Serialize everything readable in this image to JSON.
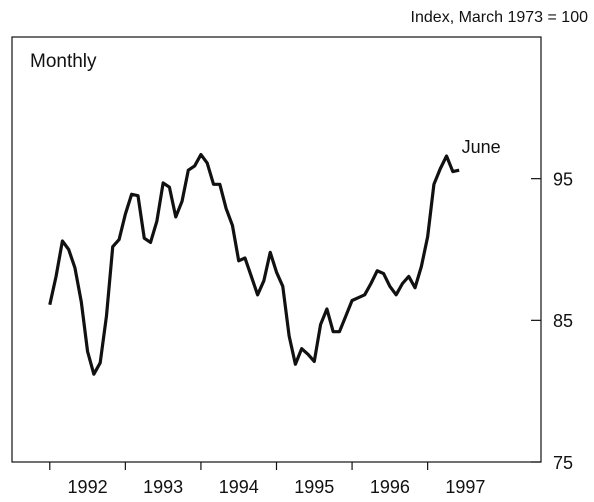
{
  "chart_data": {
    "type": "line",
    "annotation_top": "Monthly",
    "y_axis_label": "Index, March 1973 = 100",
    "end_label": "June",
    "color": "#111111",
    "x": [
      1992,
      1992.083,
      1992.167,
      1992.25,
      1992.333,
      1992.417,
      1992.5,
      1992.583,
      1992.667,
      1992.75,
      1992.833,
      1992.917,
      1993,
      1993.083,
      1993.167,
      1993.25,
      1993.333,
      1993.417,
      1993.5,
      1993.583,
      1993.667,
      1993.75,
      1993.833,
      1993.917,
      1994,
      1994.083,
      1994.167,
      1994.25,
      1994.333,
      1994.417,
      1994.5,
      1994.583,
      1994.667,
      1994.75,
      1994.833,
      1994.917,
      1995,
      1995.083,
      1995.167,
      1995.25,
      1995.333,
      1995.417,
      1995.5,
      1995.583,
      1995.667,
      1995.75,
      1995.833,
      1995.917,
      1996,
      1996.083,
      1996.167,
      1996.25,
      1996.333,
      1996.417,
      1996.5,
      1996.583,
      1996.667,
      1996.75,
      1996.833,
      1996.917,
      1997,
      1997.083,
      1997.167,
      1997.25,
      1997.333,
      1997.417
    ],
    "values": [
      86.1,
      88.1,
      90.6,
      90.0,
      88.7,
      86.3,
      82.8,
      81.2,
      82.0,
      85.3,
      90.2,
      90.7,
      92.5,
      93.9,
      93.8,
      90.8,
      90.5,
      92.0,
      94.7,
      94.4,
      92.3,
      93.4,
      95.6,
      95.9,
      96.7,
      96.1,
      94.6,
      94.6,
      92.9,
      91.7,
      89.2,
      89.4,
      88.1,
      86.8,
      87.8,
      89.8,
      88.4,
      87.4,
      83.9,
      81.9,
      83.0,
      82.6,
      82.1,
      84.7,
      85.8,
      84.2,
      84.2,
      85.3,
      86.4,
      86.6,
      86.8,
      87.6,
      88.5,
      88.3,
      87.4,
      86.8,
      87.6,
      88.1,
      87.3,
      88.8,
      90.9,
      94.6,
      95.7,
      96.6,
      95.5,
      95.6
    ],
    "xlim": [
      1991.5,
      1998.5
    ],
    "xticks": [
      1992,
      1993,
      1994,
      1995,
      1996,
      1997
    ],
    "ylim": [
      75,
      105
    ],
    "yticks": [
      75,
      85,
      95
    ]
  }
}
